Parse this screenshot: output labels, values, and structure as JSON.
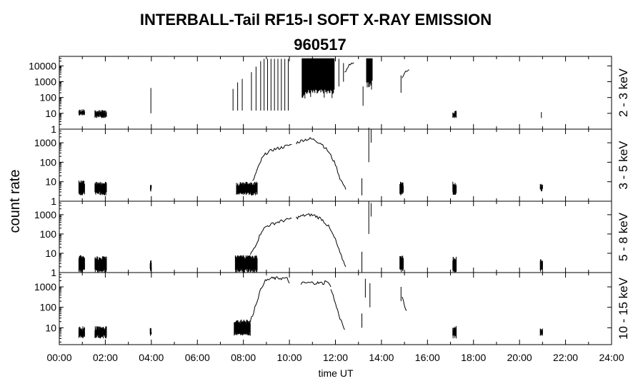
{
  "chart_data": {
    "type": "line",
    "title": "INTERBALL-Tail RF15-I SOFT X-RAY EMISSION",
    "subtitle": "960517",
    "xlabel": "time UT",
    "ylabel": "count rate",
    "xlim": [
      0,
      24
    ],
    "x_ticks": [
      "00:00",
      "02:00",
      "04:00",
      "06:00",
      "08:00",
      "10:00",
      "12:00",
      "14:00",
      "16:00",
      "18:00",
      "20:00",
      "22:00",
      "24:00"
    ],
    "y_scale": "log",
    "grid": false,
    "panels": [
      {
        "label": "2 - 3 keV",
        "ylim": [
          1,
          40000
        ],
        "y_ticks": [
          1,
          10,
          100,
          1000,
          10000
        ],
        "bursts": [
          {
            "x0": 0.85,
            "x1": 1.1,
            "lo": 7,
            "hi": 18
          },
          {
            "x0": 1.55,
            "x1": 2.05,
            "lo": 5,
            "hi": 16
          },
          {
            "x0": 17.1,
            "x1": 17.25,
            "lo": 5,
            "hi": 15
          }
        ],
        "spikes": [
          {
            "x": 3.98,
            "lo": 10,
            "hi": 400
          },
          {
            "x": 7.55,
            "lo": 15,
            "hi": 350
          },
          {
            "x": 7.75,
            "lo": 15,
            "hi": 900
          },
          {
            "x": 7.95,
            "lo": 15,
            "hi": 1500
          },
          {
            "x": 8.35,
            "lo": 15,
            "hi": 4000
          },
          {
            "x": 8.55,
            "lo": 15,
            "hi": 9000
          },
          {
            "x": 8.75,
            "lo": 15,
            "hi": 20000
          },
          {
            "x": 8.9,
            "lo": 15,
            "hi": 28000
          },
          {
            "x": 9.05,
            "lo": 15,
            "hi": 28000
          },
          {
            "x": 9.2,
            "lo": 15,
            "hi": 28000
          },
          {
            "x": 9.35,
            "lo": 15,
            "hi": 28000
          },
          {
            "x": 9.5,
            "lo": 15,
            "hi": 28000
          },
          {
            "x": 9.65,
            "lo": 15,
            "hi": 28000
          },
          {
            "x": 9.8,
            "lo": 15,
            "hi": 28000
          },
          {
            "x": 9.95,
            "lo": 15,
            "hi": 28000
          },
          {
            "x": 12.15,
            "lo": 500,
            "hi": 28000
          },
          {
            "x": 12.35,
            "lo": 1000,
            "hi": 15000
          },
          {
            "x": 13.2,
            "lo": 30,
            "hi": 500
          },
          {
            "x": 14.85,
            "lo": 200,
            "hi": 2500
          },
          {
            "x": 20.95,
            "lo": 5,
            "hi": 12
          }
        ],
        "blocks": [
          {
            "x0": 10.55,
            "x1": 11.95,
            "lo": 80,
            "hi": 30000
          },
          {
            "x0": 13.35,
            "x1": 13.6,
            "lo": 300,
            "hi": 30000
          }
        ],
        "curves": [
          {
            "x": [
              12.4,
              12.6,
              12.8
            ],
            "y": [
              4000,
              12000,
              16000
            ]
          },
          {
            "x": [
              14.9,
              15.0,
              15.1,
              15.2
            ],
            "y": [
              1500,
              3500,
              5000,
              5800
            ]
          }
        ]
      },
      {
        "label": "3 - 5 keV",
        "ylim": [
          1,
          5000
        ],
        "y_ticks": [
          1,
          10,
          100,
          1000
        ],
        "bursts": [
          {
            "x0": 0.85,
            "x1": 1.1,
            "lo": 2,
            "hi": 12
          },
          {
            "x0": 1.55,
            "x1": 2.05,
            "lo": 2,
            "hi": 10
          },
          {
            "x0": 3.95,
            "x1": 4.0,
            "lo": 3,
            "hi": 8
          },
          {
            "x0": 7.7,
            "x1": 8.6,
            "lo": 2,
            "hi": 10
          },
          {
            "x0": 14.8,
            "x1": 14.95,
            "lo": 2,
            "hi": 10
          },
          {
            "x0": 17.1,
            "x1": 17.25,
            "lo": 2,
            "hi": 10
          },
          {
            "x0": 20.9,
            "x1": 21.0,
            "lo": 3,
            "hi": 8
          }
        ],
        "spikes": [
          {
            "x": 13.15,
            "lo": 2,
            "hi": 15
          },
          {
            "x": 13.45,
            "lo": 100,
            "hi": 6000
          },
          {
            "x": 13.55,
            "lo": 1000,
            "hi": 5000
          }
        ],
        "curves": [
          {
            "x": [
              8.4,
              8.6,
              8.8,
              9.0,
              9.3,
              9.6,
              9.9,
              10.1
            ],
            "y": [
              10,
              40,
              150,
              300,
              450,
              550,
              700,
              800
            ]
          },
          {
            "x": [
              10.3,
              10.6,
              10.9,
              11.1,
              11.4,
              11.7,
              12.0,
              12.2,
              12.45
            ],
            "y": [
              1000,
              1400,
              1600,
              1400,
              900,
              350,
              80,
              15,
              4
            ]
          }
        ]
      },
      {
        "label": "5 - 8 keV",
        "ylim": [
          1,
          5000
        ],
        "y_ticks": [
          1,
          10,
          100,
          1000
        ],
        "bursts": [
          {
            "x0": 0.85,
            "x1": 1.1,
            "lo": 1,
            "hi": 8
          },
          {
            "x0": 1.55,
            "x1": 2.05,
            "lo": 1,
            "hi": 7
          },
          {
            "x0": 3.95,
            "x1": 4.0,
            "lo": 1,
            "hi": 5
          },
          {
            "x0": 7.65,
            "x1": 8.6,
            "lo": 1,
            "hi": 8
          },
          {
            "x0": 14.8,
            "x1": 14.95,
            "lo": 1,
            "hi": 8
          },
          {
            "x0": 17.1,
            "x1": 17.25,
            "lo": 1,
            "hi": 7
          },
          {
            "x0": 20.9,
            "x1": 21.0,
            "lo": 1,
            "hi": 5
          }
        ],
        "spikes": [
          {
            "x": 13.15,
            "lo": 1,
            "hi": 12
          },
          {
            "x": 13.45,
            "lo": 100,
            "hi": 5000
          },
          {
            "x": 13.55,
            "lo": 800,
            "hi": 4000
          }
        ],
        "curves": [
          {
            "x": [
              8.3,
              8.6,
              8.8,
              9.0,
              9.3,
              9.6,
              9.9,
              10.1
            ],
            "y": [
              8,
              40,
              150,
              250,
              350,
              450,
              550,
              650
            ]
          },
          {
            "x": [
              10.3,
              10.6,
              10.9,
              11.1,
              11.4,
              11.7,
              12.0,
              12.2,
              12.45
            ],
            "y": [
              700,
              900,
              1000,
              900,
              600,
              250,
              50,
              10,
              2
            ]
          }
        ]
      },
      {
        "label": "10 - 15 keV",
        "ylim": [
          1.5,
          5000
        ],
        "y_ticks": [
          10,
          100,
          1000
        ],
        "bursts": [
          {
            "x0": 0.85,
            "x1": 1.1,
            "lo": 3,
            "hi": 12
          },
          {
            "x0": 1.55,
            "x1": 2.05,
            "lo": 3,
            "hi": 12
          },
          {
            "x0": 3.95,
            "x1": 4.0,
            "lo": 4,
            "hi": 10
          },
          {
            "x0": 7.6,
            "x1": 8.3,
            "lo": 4,
            "hi": 25
          },
          {
            "x0": 17.1,
            "x1": 17.25,
            "lo": 3,
            "hi": 12
          },
          {
            "x0": 20.9,
            "x1": 21.0,
            "lo": 4,
            "hi": 10
          }
        ],
        "spikes": [
          {
            "x": 13.15,
            "lo": 10,
            "hi": 50
          },
          {
            "x": 13.3,
            "lo": 300,
            "hi": 2500
          },
          {
            "x": 13.5,
            "lo": 100,
            "hi": 1500
          },
          {
            "x": 14.85,
            "lo": 200,
            "hi": 1000
          }
        ],
        "curves": [
          {
            "x": [
              8.3,
              8.5,
              8.7,
              8.9,
              9.2,
              9.6,
              9.9,
              10.0
            ],
            "y": [
              20,
              100,
              500,
              1800,
              2600,
              2700,
              2500,
              1500
            ]
          },
          {
            "x": [
              10.5,
              11.0,
              11.5,
              11.6,
              11.7,
              11.8
            ],
            "y": [
              1500,
              1600,
              1500,
              2200,
              1400,
              1000
            ]
          },
          {
            "x": [
              11.8,
              12.0,
              12.2,
              12.4
            ],
            "y": [
              900,
              150,
              30,
              8
            ]
          },
          {
            "x": [
              14.9,
              15.0,
              15.1
            ],
            "y": [
              300,
              120,
              70
            ]
          }
        ]
      }
    ]
  }
}
